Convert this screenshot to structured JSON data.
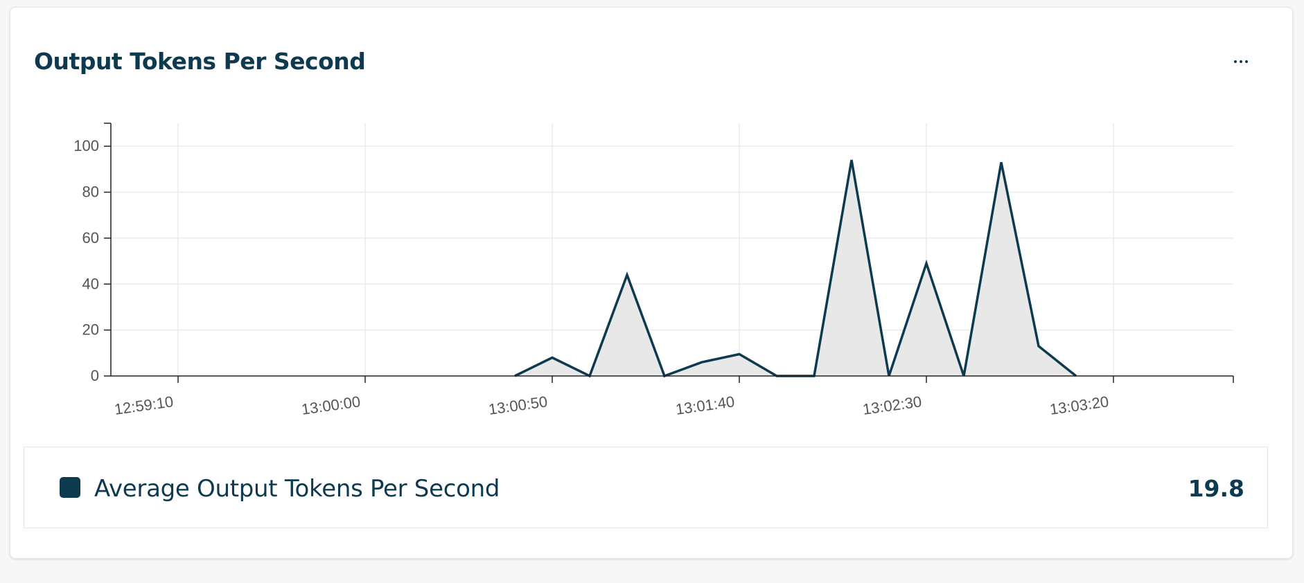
{
  "panel": {
    "title": "Output Tokens Per Second",
    "menu_icon": "more-horizontal-icon"
  },
  "legend": {
    "label": "Average Output Tokens Per Second",
    "value": "19.8",
    "swatch_color": "#0d3a4f"
  },
  "chart_data": {
    "type": "area",
    "x_ticks": [
      "12:59:10",
      "13:00:00",
      "13:00:50",
      "13:01:40",
      "13:02:30",
      "13:03:20"
    ],
    "y_ticks": [
      0,
      20,
      40,
      60,
      80,
      100
    ],
    "ylim": [
      0,
      110
    ],
    "grid": true,
    "series": [
      {
        "color": "#0d3a4f",
        "fill": "#e8e8e8",
        "x": [
          "13:00:40",
          "13:00:50",
          "13:01:00",
          "13:01:10",
          "13:01:20",
          "13:01:30",
          "13:01:40",
          "13:01:50",
          "13:02:00",
          "13:02:10",
          "13:02:20",
          "13:02:30",
          "13:02:40",
          "13:02:50",
          "13:03:00",
          "13:03:10",
          "13:03:20"
        ],
        "values": [
          0,
          8,
          0,
          44,
          0,
          6,
          9.5,
          0,
          0,
          94,
          0,
          49,
          0,
          93,
          13,
          0,
          null
        ]
      }
    ]
  }
}
